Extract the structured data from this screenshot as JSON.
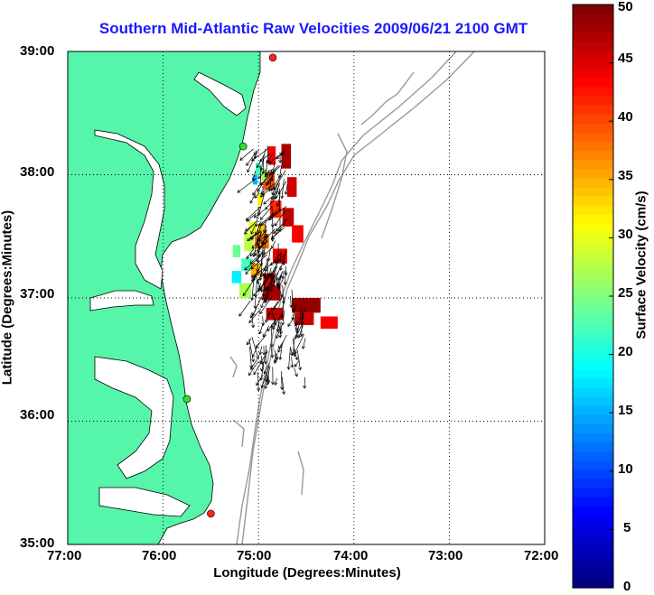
{
  "title": "Southern Mid-Atlantic Raw Velocities 2009/06/21 2100 GMT",
  "map": {
    "xlabel": "Longitude (Degrees:Minutes)",
    "ylabel": "Latitude (Degrees:Minutes)",
    "x_ticks": [
      "77:00",
      "76:00",
      "75:00",
      "74:00",
      "73:00",
      "72:00"
    ],
    "y_ticks": [
      "39:00",
      "38:00",
      "37:00",
      "36:00",
      "35:00"
    ],
    "lon_range": [
      -77,
      -72
    ],
    "lat_range": [
      35,
      39
    ],
    "grid": "dotted",
    "land_color": "#55f5aa",
    "water_color": "#ffffff",
    "bathymetry_color": "#999999"
  },
  "colorbar": {
    "label": "Surface Velocity (cm/s)",
    "ticks": [
      "50",
      "45",
      "40",
      "35",
      "30",
      "25",
      "20",
      "15",
      "10",
      "5",
      "0"
    ],
    "range": [
      0,
      50
    ],
    "colormap": "jet"
  },
  "stations": [
    {
      "lon": -74.85,
      "lat": 38.95,
      "status_color": "#ff2020"
    },
    {
      "lon": -75.16,
      "lat": 38.23,
      "status_color": "#33dd33"
    },
    {
      "lon": -75.75,
      "lat": 36.18,
      "status_color": "#33dd33"
    },
    {
      "lon": -75.5,
      "lat": 35.25,
      "status_color": "#ff2020"
    }
  ]
}
